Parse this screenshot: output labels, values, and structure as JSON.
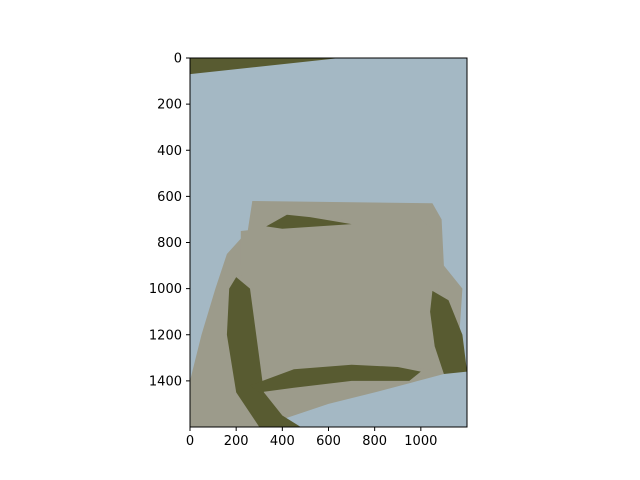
{
  "chart_data": {
    "type": "heatmap",
    "subtype": "image",
    "title": "",
    "xlabel": "",
    "ylabel": "",
    "xlim": [
      0,
      1200
    ],
    "ylim": [
      1600,
      0
    ],
    "image_size": {
      "width": 1200,
      "height": 1600
    },
    "grid": false,
    "legend": "none",
    "x_ticks": [
      0,
      200,
      400,
      600,
      800,
      1000
    ],
    "y_ticks": [
      0,
      200,
      400,
      600,
      800,
      1000,
      1200,
      1400
    ],
    "palette": {
      "sky": "#a4b8c4",
      "dark": "#585b31",
      "cloth": "#9c9b8b"
    },
    "regions": [
      {
        "name": "sky",
        "color": "sky",
        "points": [
          [
            0,
            0
          ],
          [
            1200,
            0
          ],
          [
            1200,
            1600
          ],
          [
            0,
            1600
          ]
        ]
      },
      {
        "name": "top-left-dark",
        "color": "dark",
        "points": [
          [
            0,
            0
          ],
          [
            650,
            0
          ],
          [
            0,
            70
          ]
        ]
      },
      {
        "name": "cloth-back",
        "color": "cloth",
        "points": [
          [
            270,
            620
          ],
          [
            1050,
            630
          ],
          [
            1090,
            700
          ],
          [
            1100,
            900
          ],
          [
            1180,
            1000
          ],
          [
            1160,
            1300
          ],
          [
            1100,
            1370
          ],
          [
            950,
            1410
          ],
          [
            800,
            1450
          ],
          [
            600,
            1500
          ],
          [
            450,
            1550
          ],
          [
            300,
            1600
          ],
          [
            0,
            1600
          ],
          [
            0,
            1400
          ],
          [
            50,
            1200
          ],
          [
            110,
            1000
          ],
          [
            160,
            850
          ],
          [
            250,
            750
          ]
        ]
      },
      {
        "name": "cloth-front",
        "color": "cloth",
        "points": [
          [
            220,
            750
          ],
          [
            680,
            700
          ],
          [
            1000,
            700
          ],
          [
            1070,
            760
          ],
          [
            1090,
            900
          ],
          [
            1060,
            1100
          ],
          [
            1040,
            1350
          ],
          [
            900,
            1340
          ],
          [
            700,
            1350
          ],
          [
            500,
            1370
          ],
          [
            350,
            1400
          ],
          [
            280,
            1320
          ],
          [
            240,
            1100
          ],
          [
            220,
            900
          ]
        ]
      },
      {
        "name": "left-flap",
        "color": "dark",
        "points": [
          [
            200,
            950
          ],
          [
            260,
            1000
          ],
          [
            300,
            1300
          ],
          [
            320,
            1450
          ],
          [
            400,
            1550
          ],
          [
            480,
            1600
          ],
          [
            300,
            1600
          ],
          [
            200,
            1450
          ],
          [
            160,
            1200
          ],
          [
            170,
            1000
          ]
        ]
      },
      {
        "name": "bottom-shadow",
        "color": "dark",
        "points": [
          [
            260,
            1420
          ],
          [
            450,
            1350
          ],
          [
            700,
            1330
          ],
          [
            900,
            1340
          ],
          [
            1000,
            1360
          ],
          [
            950,
            1400
          ],
          [
            700,
            1400
          ],
          [
            450,
            1430
          ],
          [
            300,
            1450
          ]
        ]
      },
      {
        "name": "right-flap",
        "color": "dark",
        "points": [
          [
            1050,
            1010
          ],
          [
            1120,
            1050
          ],
          [
            1180,
            1200
          ],
          [
            1200,
            1360
          ],
          [
            1100,
            1370
          ],
          [
            1060,
            1250
          ],
          [
            1040,
            1100
          ]
        ]
      },
      {
        "name": "top-mound",
        "color": "dark",
        "points": [
          [
            330,
            730
          ],
          [
            420,
            680
          ],
          [
            520,
            690
          ],
          [
            700,
            720
          ],
          [
            400,
            740
          ]
        ]
      },
      {
        "name": "bottom-right-sky",
        "color": "sky",
        "points": [
          [
            850,
            1450
          ],
          [
            1200,
            1380
          ],
          [
            1200,
            1600
          ],
          [
            820,
            1600
          ],
          [
            780,
            1520
          ]
        ]
      }
    ]
  }
}
